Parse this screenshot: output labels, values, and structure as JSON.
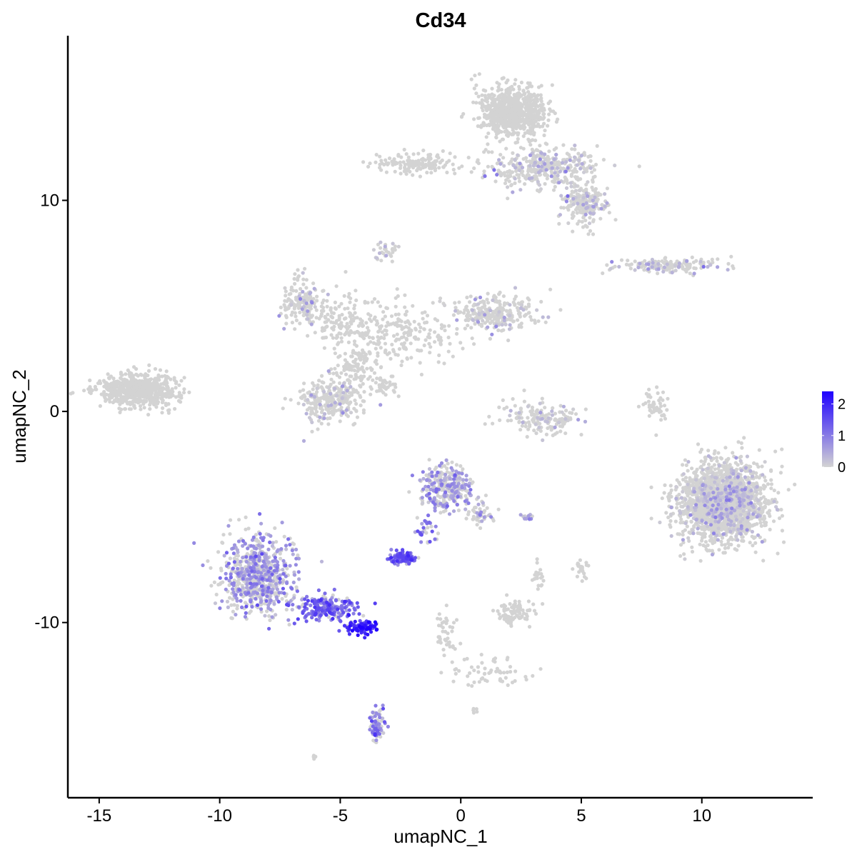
{
  "chart_data": {
    "type": "scatter",
    "title": "Cd34",
    "xlabel": "umapNC_1",
    "ylabel": "umapNC_2",
    "xlim": [
      -16.3,
      14.6
    ],
    "ylim": [
      -18.3,
      17.8
    ],
    "x_ticks": [
      -15,
      -10,
      -5,
      0,
      5,
      10
    ],
    "x_tick_labels": [
      "-15",
      "-10",
      "-5",
      "0",
      "5",
      "10"
    ],
    "y_ticks": [
      -10,
      0,
      10
    ],
    "y_tick_labels": [
      "-10",
      "0",
      "10"
    ],
    "grid": false,
    "legend": {
      "position": "right",
      "type": "colorbar",
      "range": [
        0,
        2.4
      ],
      "ticks": [
        0,
        1,
        2
      ],
      "tick_labels": [
        "0",
        "1",
        "2"
      ],
      "low_color": "#d3d3d3",
      "high_color": "#1f00ff"
    },
    "expression_scale": "continuous 0 (grey) to max (blue)",
    "clusters": [
      {
        "x": -13.4,
        "y": 1.0,
        "sx": 1.1,
        "sy": 0.5,
        "n": 650,
        "expr": 0.0
      },
      {
        "x": 2.2,
        "y": 14.2,
        "sx": 0.9,
        "sy": 0.8,
        "n": 750,
        "expr": 0.0
      },
      {
        "x": 3.5,
        "y": 11.6,
        "sx": 1.5,
        "sy": 0.7,
        "n": 380,
        "expr": 0.02
      },
      {
        "x": 5.1,
        "y": 9.8,
        "sx": 0.6,
        "sy": 0.6,
        "n": 200,
        "expr": 0.02
      },
      {
        "x": -1.8,
        "y": 11.7,
        "sx": 1.1,
        "sy": 0.35,
        "n": 150,
        "expr": 0.0
      },
      {
        "x": -3.1,
        "y": 7.5,
        "sx": 0.3,
        "sy": 0.3,
        "n": 30,
        "expr": 0.05
      },
      {
        "x": -6.6,
        "y": 5.3,
        "sx": 0.6,
        "sy": 0.7,
        "n": 160,
        "expr": 0.02
      },
      {
        "x": -4.8,
        "y": 4.2,
        "sx": 1.0,
        "sy": 0.8,
        "n": 150,
        "expr": 0.0
      },
      {
        "x": 1.5,
        "y": 4.7,
        "sx": 1.2,
        "sy": 0.6,
        "n": 260,
        "expr": 0.04
      },
      {
        "x": -2.2,
        "y": 3.6,
        "sx": 1.5,
        "sy": 1.0,
        "n": 200,
        "expr": 0.0
      },
      {
        "x": -5.4,
        "y": 0.6,
        "sx": 0.9,
        "sy": 0.7,
        "n": 280,
        "expr": 0.02
      },
      {
        "x": -4.3,
        "y": 2.1,
        "sx": 0.6,
        "sy": 0.6,
        "n": 100,
        "expr": 0.0
      },
      {
        "x": -3.2,
        "y": 1.2,
        "sx": 0.5,
        "sy": 0.3,
        "n": 40,
        "expr": 0.0
      },
      {
        "x": 3.4,
        "y": -0.3,
        "sx": 1.1,
        "sy": 0.5,
        "n": 160,
        "expr": 0.02
      },
      {
        "x": 8.0,
        "y": 0.3,
        "sx": 0.35,
        "sy": 0.6,
        "n": 50,
        "expr": 0.0
      },
      {
        "x": 8.5,
        "y": 6.9,
        "sx": 1.3,
        "sy": 0.25,
        "n": 160,
        "expr": 0.02
      },
      {
        "x": 10.9,
        "y": -4.3,
        "sx": 1.2,
        "sy": 1.25,
        "n": 2000,
        "expr": 0.01
      },
      {
        "x": -0.6,
        "y": -3.6,
        "sx": 0.7,
        "sy": 0.7,
        "n": 300,
        "expr": 0.55
      },
      {
        "x": 0.8,
        "y": -4.8,
        "sx": 0.35,
        "sy": 0.4,
        "n": 50,
        "expr": 0.3
      },
      {
        "x": -2.4,
        "y": -6.9,
        "sx": 0.3,
        "sy": 0.2,
        "n": 120,
        "expr": 1.3
      },
      {
        "x": -1.5,
        "y": -5.8,
        "sx": 0.4,
        "sy": 0.5,
        "n": 30,
        "expr": 1.0
      },
      {
        "x": -8.4,
        "y": -7.8,
        "sx": 1.0,
        "sy": 1.2,
        "n": 700,
        "expr": 0.6
      },
      {
        "x": -5.6,
        "y": -9.3,
        "sx": 0.9,
        "sy": 0.4,
        "n": 220,
        "expr": 1.2
      },
      {
        "x": -4.2,
        "y": -10.2,
        "sx": 0.5,
        "sy": 0.22,
        "n": 90,
        "expr": 1.9
      },
      {
        "x": -3.5,
        "y": -14.9,
        "sx": 0.2,
        "sy": 0.5,
        "n": 80,
        "expr": 0.9
      },
      {
        "x": 2.3,
        "y": -9.5,
        "sx": 0.5,
        "sy": 0.4,
        "n": 90,
        "expr": 0.0
      },
      {
        "x": 1.2,
        "y": -12.3,
        "sx": 1.1,
        "sy": 0.5,
        "n": 60,
        "expr": 0.0
      },
      {
        "x": -0.6,
        "y": -10.5,
        "sx": 0.3,
        "sy": 0.8,
        "n": 40,
        "expr": 0.0
      },
      {
        "x": 3.2,
        "y": -7.8,
        "sx": 0.2,
        "sy": 0.4,
        "n": 20,
        "expr": 0.0
      },
      {
        "x": 5.0,
        "y": -7.4,
        "sx": 0.2,
        "sy": 0.4,
        "n": 25,
        "expr": 0.0
      },
      {
        "x": 2.7,
        "y": -5.0,
        "sx": 0.2,
        "sy": 0.1,
        "n": 12,
        "expr": 0.6
      },
      {
        "x": -6.1,
        "y": -16.4,
        "sx": 0.1,
        "sy": 0.1,
        "n": 5,
        "expr": 0.0
      },
      {
        "x": 0.6,
        "y": -14.2,
        "sx": 0.1,
        "sy": 0.1,
        "n": 5,
        "expr": 0.1
      }
    ]
  }
}
